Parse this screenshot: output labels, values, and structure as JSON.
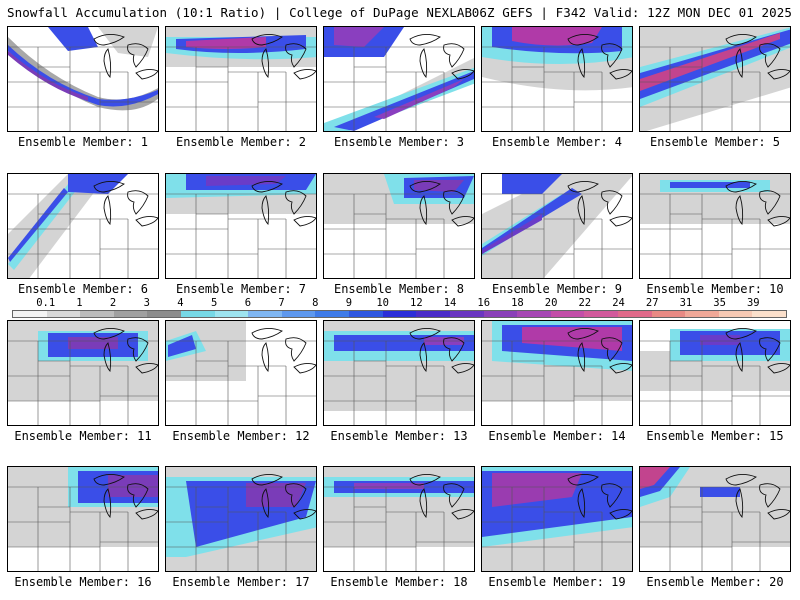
{
  "header": {
    "title": "Snowfall Accumulation (10:1 Ratio) | College of DuPage NEXLAB",
    "run_info": "06Z GEFS | F342 Valid: 12Z MON DEC 01 2025"
  },
  "panels": [
    {
      "label": "Ensemble Member: 1",
      "max_color": "#7a3cb8"
    },
    {
      "label": "Ensemble Member: 2",
      "max_color": "#b03aa8"
    },
    {
      "label": "Ensemble Member: 3",
      "max_color": "#8a3fbf"
    },
    {
      "label": "Ensemble Member: 4",
      "max_color": "#b03aa8"
    },
    {
      "label": "Ensemble Member: 5",
      "max_color": "#c2448e"
    },
    {
      "label": "Ensemble Member: 6",
      "max_color": "#4a5af0"
    },
    {
      "label": "Ensemble Member: 7",
      "max_color": "#6a3cc8"
    },
    {
      "label": "Ensemble Member: 8",
      "max_color": "#7a3cb8"
    },
    {
      "label": "Ensemble Member: 9",
      "max_color": "#6a3cc8"
    },
    {
      "label": "Ensemble Member: 10",
      "max_color": "#3a4af0"
    },
    {
      "label": "Ensemble Member: 11",
      "max_color": "#7a3cb8"
    },
    {
      "label": "Ensemble Member: 12",
      "max_color": "#4a6af0"
    },
    {
      "label": "Ensemble Member: 13",
      "max_color": "#8a3fbf"
    },
    {
      "label": "Ensemble Member: 14",
      "max_color": "#b03aa8"
    },
    {
      "label": "Ensemble Member: 15",
      "max_color": "#6a3cc8"
    },
    {
      "label": "Ensemble Member: 16",
      "max_color": "#7a3cb8"
    },
    {
      "label": "Ensemble Member: 17",
      "max_color": "#7a3cb8"
    },
    {
      "label": "Ensemble Member: 18",
      "max_color": "#8a3fbf"
    },
    {
      "label": "Ensemble Member: 19",
      "max_color": "#9a3cb0"
    },
    {
      "label": "Ensemble Member: 20",
      "max_color": "#c2448e"
    }
  ],
  "colorbar": {
    "ticks": [
      "0.1",
      "1",
      "2",
      "3",
      "4",
      "5",
      "6",
      "7",
      "8",
      "9",
      "10",
      "12",
      "14",
      "16",
      "18",
      "20",
      "22",
      "24",
      "27",
      "31",
      "35",
      "39"
    ],
    "colors": [
      "#f4f4f4",
      "#d8d8d8",
      "#bcbcbc",
      "#a0a0a0",
      "#8c8c8c",
      "#77d8e6",
      "#9ee4f0",
      "#7fb6f2",
      "#5e98ee",
      "#3f7be8",
      "#2f57e0",
      "#2c2ed8",
      "#4a2cc8",
      "#6a36c0",
      "#8a40b8",
      "#a648b4",
      "#c24ea8",
      "#d25a9c",
      "#e06a8a",
      "#e88a84",
      "#f0a898",
      "#f7c9b4",
      "#fbe0cc"
    ]
  }
}
